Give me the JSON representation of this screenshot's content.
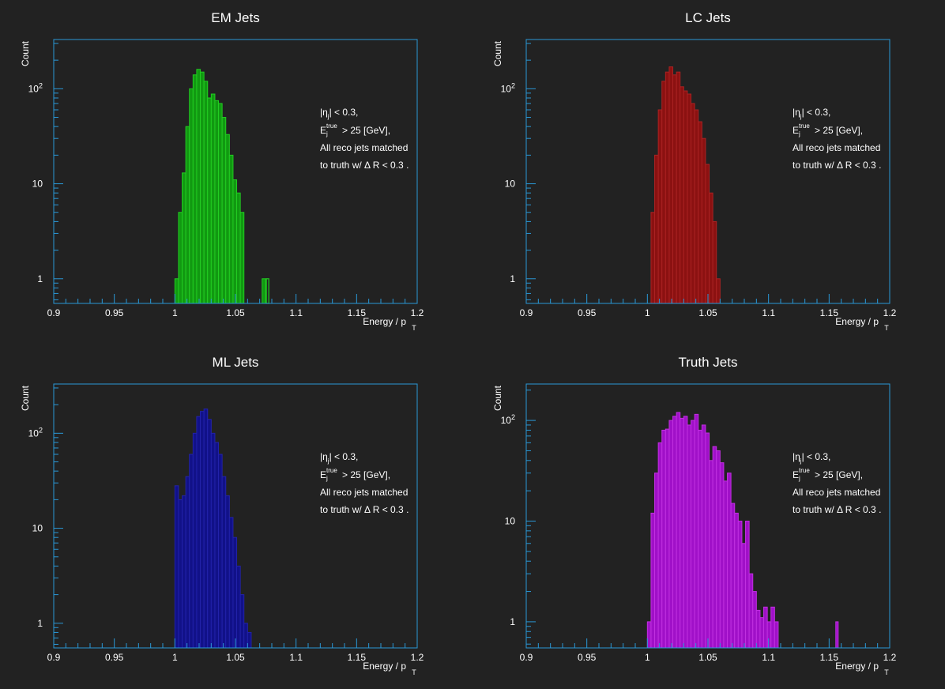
{
  "chart_data": [
    {
      "type": "bar",
      "title": "EM Jets",
      "xlabel_main": "Energy / p",
      "xlabel_sub": "T",
      "ylabel": "Count",
      "xlim": [
        0.9,
        1.2
      ],
      "ylim": [
        0.55,
        330
      ],
      "yscale": "log",
      "xticks": [
        "0.9",
        "0.95",
        "1",
        "1.05",
        "1.1",
        "1.15",
        "1.2"
      ],
      "yticks": [
        {
          "value": 1,
          "base": "1",
          "exp": ""
        },
        {
          "value": 10,
          "base": "10",
          "exp": ""
        },
        {
          "value": 100,
          "base": "10",
          "exp": "2"
        }
      ],
      "color": "#119911",
      "edge": "#22cc22",
      "bin_start": 1.0,
      "bin_width": 0.003,
      "values": [
        1,
        5,
        13,
        40,
        100,
        140,
        160,
        150,
        120,
        80,
        88,
        75,
        70,
        50,
        33,
        20,
        11,
        8,
        5,
        0,
        0,
        0,
        0,
        0,
        1
      ],
      "annotations": {
        "line1_a": "|η",
        "line1_sub": "j",
        "line1_b": "| < 0.3,",
        "line2_a": "E",
        "line2_sup": "true",
        "line2_sub": "j",
        "line2_b": "> 25 [GeV],",
        "line3": "All reco jets matched",
        "line4": "to truth w/  Δ R < 0.3 ."
      },
      "legend": "none"
    },
    {
      "type": "bar",
      "title": "LC Jets",
      "xlabel_main": "Energy / p",
      "xlabel_sub": "T",
      "ylabel": "Count",
      "xlim": [
        0.9,
        1.2
      ],
      "ylim": [
        0.55,
        330
      ],
      "yscale": "log",
      "xticks": [
        "0.9",
        "0.95",
        "1",
        "1.05",
        "1.1",
        "1.15",
        "1.2"
      ],
      "yticks": [
        {
          "value": 1,
          "base": "1",
          "exp": ""
        },
        {
          "value": 10,
          "base": "10",
          "exp": ""
        },
        {
          "value": 100,
          "base": "10",
          "exp": "2"
        }
      ],
      "color": "#8b1111",
      "edge": "#aa2222",
      "bin_start": 1.003,
      "bin_width": 0.003,
      "values": [
        5,
        20,
        60,
        120,
        150,
        170,
        140,
        150,
        105,
        95,
        88,
        70,
        60,
        45,
        30,
        16,
        8,
        4,
        1
      ],
      "annotations": {
        "line1_a": "|η",
        "line1_sub": "j",
        "line1_b": "| < 0.3,",
        "line2_a": "E",
        "line2_sup": "true",
        "line2_sub": "j",
        "line2_b": "> 25 [GeV],",
        "line3": "All reco jets matched",
        "line4": "to truth w/  Δ R < 0.3 ."
      },
      "legend": "none"
    },
    {
      "type": "bar",
      "title": "ML Jets",
      "xlabel_main": "Energy / p",
      "xlabel_sub": "T",
      "ylabel": "Count",
      "xlim": [
        0.9,
        1.2
      ],
      "ylim": [
        0.55,
        330
      ],
      "yscale": "log",
      "xticks": [
        "0.9",
        "0.95",
        "1",
        "1.05",
        "1.1",
        "1.15",
        "1.2"
      ],
      "yticks": [
        {
          "value": 1,
          "base": "1",
          "exp": ""
        },
        {
          "value": 10,
          "base": "10",
          "exp": ""
        },
        {
          "value": 100,
          "base": "10",
          "exp": "2"
        }
      ],
      "color": "#111188",
      "edge": "#2222aa",
      "bin_start": 1.0,
      "bin_width": 0.003,
      "values": [
        28,
        20,
        22,
        35,
        60,
        100,
        150,
        170,
        180,
        140,
        100,
        80,
        60,
        35,
        22,
        13,
        8,
        4,
        2,
        1,
        0.8,
        0.5,
        0.4,
        0.35,
        0.3,
        0.3,
        0.3,
        0.3,
        0.3
      ],
      "annotations": {
        "line1_a": "|η",
        "line1_sub": "j",
        "line1_b": "| < 0.3,",
        "line2_a": "E",
        "line2_sup": "true",
        "line2_sub": "j",
        "line2_b": "> 25 [GeV],",
        "line3": "All reco jets matched",
        "line4": "to truth w/  Δ R < 0.3 ."
      },
      "legend": "none"
    },
    {
      "type": "bar",
      "title": "Truth Jets",
      "xlabel_main": "Energy / p",
      "xlabel_sub": "T",
      "ylabel": "Count",
      "xlim": [
        0.9,
        1.2
      ],
      "ylim": [
        0.55,
        230
      ],
      "yscale": "log",
      "xticks": [
        "0.9",
        "0.95",
        "1",
        "1.05",
        "1.1",
        "1.15",
        "1.2"
      ],
      "yticks": [
        {
          "value": 1,
          "base": "1",
          "exp": ""
        },
        {
          "value": 10,
          "base": "10",
          "exp": ""
        },
        {
          "value": 100,
          "base": "10",
          "exp": "2"
        }
      ],
      "color": "#a010c8",
      "edge": "#c030e0",
      "bin_start": 1.0,
      "bin_width": 0.003,
      "values": [
        1,
        12,
        30,
        60,
        80,
        82,
        100,
        110,
        120,
        105,
        110,
        90,
        100,
        115,
        80,
        90,
        75,
        40,
        55,
        50,
        38,
        25,
        30,
        15,
        12,
        10,
        6,
        10,
        3,
        2,
        1.3,
        1.1,
        1.4,
        1,
        1.4,
        1,
        0.45,
        0.45,
        0.45,
        0.45,
        0.45,
        0.45,
        0.45,
        0.45,
        0.45,
        0.45,
        0.45,
        0.45,
        0.45,
        0.45,
        0.45,
        0.45,
        0.45
      ],
      "spike_bin": {
        "x": 1.1555,
        "width": 0.002,
        "value": 1
      },
      "annotations": {
        "line1_a": "|η",
        "line1_sub": "j",
        "line1_b": "| < 0.3,",
        "line2_a": "E",
        "line2_sup": "true",
        "line2_sub": "j",
        "line2_b": "> 25 [GeV],",
        "line3": "All reco jets matched",
        "line4": "to truth w/  Δ R < 0.3 ."
      },
      "legend": "none"
    }
  ],
  "axis_color": "#2a98d6"
}
